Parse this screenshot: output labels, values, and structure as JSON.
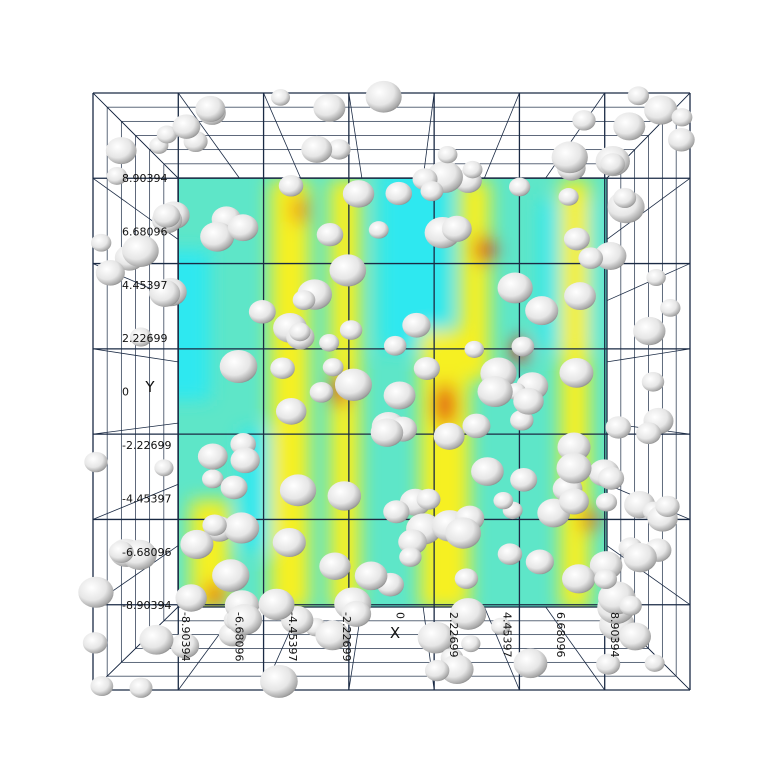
{
  "y_axis": {
    "label": "Y",
    "ticks": [
      "8.90394",
      "6.68096",
      "4.45397",
      "2.22699",
      "0",
      "-2.22699",
      "-4.45397",
      "-6.68096",
      "-8.90394"
    ]
  },
  "x_axis": {
    "label": "X",
    "ticks": [
      "-8.90394",
      "-6.68096",
      "-4.45397",
      "-2.22699",
      "0",
      "2.22699",
      "4.45397",
      "6.68096",
      "8.90394"
    ]
  }
}
